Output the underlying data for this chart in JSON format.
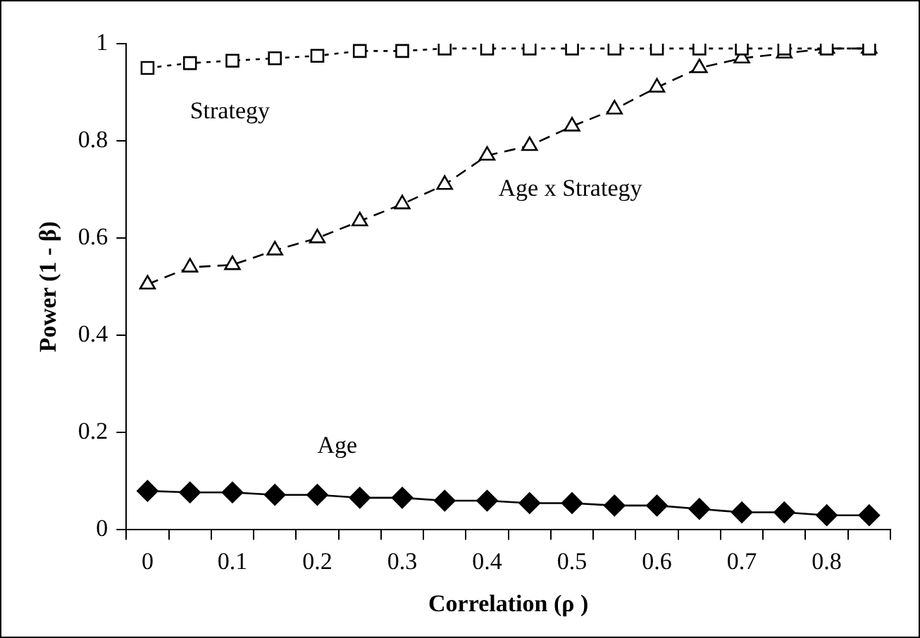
{
  "chart_data": {
    "type": "line",
    "xlabel": "Correlation (ρ )",
    "ylabel": "Power (1 - β)",
    "categories": [
      "0",
      null,
      "0.1",
      null,
      "0.2",
      null,
      "0.3",
      null,
      "0.4",
      null,
      "0.5",
      null,
      "0.6",
      null,
      "0.7",
      null,
      "0.8",
      null
    ],
    "series": [
      {
        "name": "Strategy",
        "color": "#000000",
        "marker": "square",
        "line_style": "dotted",
        "values": [
          0.95,
          0.96,
          0.965,
          0.97,
          0.975,
          0.985,
          0.985,
          0.99,
          0.99,
          0.99,
          0.99,
          0.99,
          0.99,
          0.99,
          0.99,
          0.99,
          0.99,
          0.99
        ]
      },
      {
        "name": "Age x Strategy",
        "color": "#000000",
        "marker": "triangle",
        "line_style": "dashed",
        "values": [
          0.505,
          0.54,
          0.545,
          0.575,
          0.6,
          0.635,
          0.67,
          0.71,
          0.77,
          0.79,
          0.83,
          0.865,
          0.91,
          0.95,
          0.97,
          0.98,
          0.99,
          0.99
        ]
      },
      {
        "name": "Age",
        "color": "#000000",
        "marker": "diamond",
        "line_style": "solid",
        "values": [
          0.08,
          0.077,
          0.077,
          0.072,
          0.072,
          0.066,
          0.066,
          0.06,
          0.06,
          0.055,
          0.055,
          0.05,
          0.05,
          0.043,
          0.036,
          0.036,
          0.03,
          0.03
        ]
      }
    ],
    "ylim": [
      0,
      1
    ],
    "yticks": [
      0,
      0.2,
      0.4,
      0.6,
      0.8,
      1
    ],
    "grid": false,
    "legend": false
  }
}
